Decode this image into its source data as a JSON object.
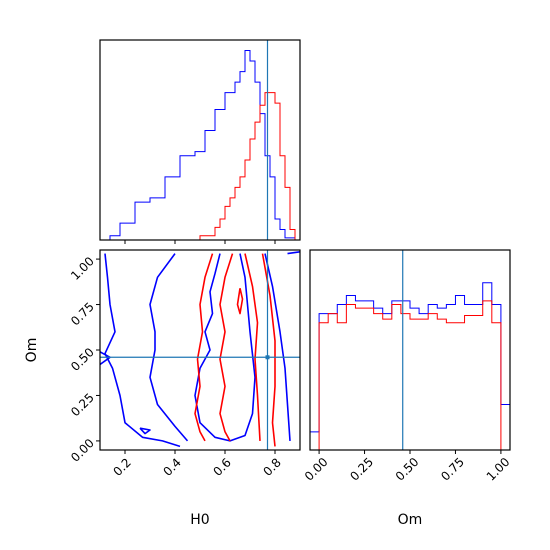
{
  "chart_data": [
    {
      "type": "histogram",
      "panel": "H0 marginal",
      "xlim": [
        0.1,
        0.9
      ],
      "truth": 0.77,
      "bins": [
        0.1,
        0.12,
        0.14,
        0.16,
        0.18,
        0.2,
        0.22,
        0.24,
        0.26,
        0.28,
        0.3,
        0.32,
        0.34,
        0.36,
        0.38,
        0.4,
        0.42,
        0.44,
        0.46,
        0.48,
        0.5,
        0.52,
        0.54,
        0.56,
        0.58,
        0.6,
        0.62,
        0.64,
        0.66,
        0.68,
        0.7,
        0.72,
        0.74,
        0.76,
        0.78,
        0.8,
        0.82,
        0.84,
        0.86,
        0.88,
        0.9
      ],
      "series": [
        {
          "color": "#0000ff",
          "values": [
            0,
            0,
            2,
            2,
            8,
            8,
            8,
            18,
            18,
            18,
            20,
            20,
            20,
            30,
            30,
            30,
            40,
            40,
            40,
            42,
            42,
            52,
            52,
            62,
            62,
            70,
            70,
            75,
            80,
            90,
            85,
            75,
            60,
            40,
            30,
            10,
            5,
            1,
            1,
            0
          ]
        },
        {
          "color": "#ff0000",
          "values": [
            0,
            0,
            0,
            0,
            0,
            0,
            0,
            0,
            0,
            0,
            0,
            0,
            0,
            0,
            0,
            0,
            0,
            0,
            0,
            0,
            2,
            2,
            2,
            6,
            10,
            16,
            20,
            25,
            30,
            38,
            48,
            56,
            64,
            70,
            70,
            65,
            40,
            25,
            5,
            0
          ]
        }
      ]
    },
    {
      "type": "contour",
      "panel": "H0 vs Om joint",
      "xlabel": "H0",
      "ylabel": "Om",
      "xlim": [
        0.1,
        0.9
      ],
      "ylim": [
        -0.05,
        1.05
      ],
      "xticks": [
        "0.2",
        "0.4",
        "0.6",
        "0.8"
      ],
      "yticks": [
        "0.00",
        "0.25",
        "0.50",
        "0.75",
        "1.00"
      ],
      "truth": {
        "x": 0.77,
        "y": 0.46
      },
      "series": [
        {
          "color": "#0000ff",
          "contours": [
            [
              [
                0.12,
                1.03
              ],
              [
                0.13,
                0.9
              ],
              [
                0.14,
                0.75
              ],
              [
                0.16,
                0.6
              ],
              [
                0.12,
                0.48
              ],
              [
                0.15,
                0.4
              ],
              [
                0.18,
                0.25
              ],
              [
                0.2,
                0.1
              ],
              [
                0.27,
                0.02
              ],
              [
                0.35,
                0.0
              ],
              [
                0.42,
                -0.03
              ]
            ],
            [
              [
                0.4,
                1.03
              ],
              [
                0.33,
                0.9
              ],
              [
                0.3,
                0.75
              ],
              [
                0.32,
                0.6
              ],
              [
                0.32,
                0.5
              ],
              [
                0.3,
                0.35
              ],
              [
                0.33,
                0.2
              ],
              [
                0.4,
                0.08
              ],
              [
                0.45,
                0.0
              ]
            ],
            [
              [
                0.58,
                1.03
              ],
              [
                0.56,
                0.92
              ],
              [
                0.54,
                0.82
              ],
              [
                0.55,
                0.7
              ],
              [
                0.52,
                0.6
              ],
              [
                0.54,
                0.5
              ],
              [
                0.5,
                0.4
              ],
              [
                0.48,
                0.25
              ],
              [
                0.5,
                0.1
              ],
              [
                0.56,
                0.02
              ],
              [
                0.62,
                0.0
              ],
              [
                0.68,
                0.03
              ],
              [
                0.71,
                0.15
              ],
              [
                0.72,
                0.35
              ],
              [
                0.7,
                0.6
              ],
              [
                0.68,
                0.9
              ],
              [
                0.66,
                1.03
              ]
            ],
            [
              [
                0.76,
                1.03
              ],
              [
                0.79,
                0.85
              ],
              [
                0.82,
                0.6
              ],
              [
                0.84,
                0.4
              ],
              [
                0.85,
                0.2
              ],
              [
                0.86,
                0.0
              ]
            ],
            [
              [
                0.85,
                1.03
              ],
              [
                0.9,
                1.04
              ]
            ],
            [
              [
                0.26,
                0.07
              ],
              [
                0.3,
                0.06
              ],
              [
                0.28,
                0.04
              ],
              [
                0.26,
                0.07
              ]
            ],
            [
              [
                0.1,
                0.49
              ],
              [
                0.14,
                0.46
              ],
              [
                0.1,
                0.42
              ]
            ]
          ]
        },
        {
          "color": "#ff0000",
          "contours": [
            [
              [
                0.55,
                1.03
              ],
              [
                0.52,
                0.9
              ],
              [
                0.5,
                0.75
              ],
              [
                0.51,
                0.6
              ],
              [
                0.49,
                0.45
              ],
              [
                0.5,
                0.3
              ],
              [
                0.48,
                0.15
              ],
              [
                0.5,
                0.05
              ],
              [
                0.52,
                0.0
              ]
            ],
            [
              [
                0.63,
                1.03
              ],
              [
                0.6,
                0.9
              ],
              [
                0.58,
                0.75
              ],
              [
                0.6,
                0.6
              ],
              [
                0.58,
                0.45
              ],
              [
                0.6,
                0.3
              ],
              [
                0.58,
                0.15
              ],
              [
                0.6,
                0.05
              ],
              [
                0.62,
                0.0
              ]
            ],
            [
              [
                0.68,
                1.03
              ],
              [
                0.71,
                0.85
              ],
              [
                0.73,
                0.65
              ],
              [
                0.72,
                0.45
              ],
              [
                0.73,
                0.25
              ],
              [
                0.74,
                0.0
              ]
            ],
            [
              [
                0.75,
                1.03
              ],
              [
                0.78,
                0.8
              ],
              [
                0.8,
                0.55
              ],
              [
                0.8,
                0.3
              ],
              [
                0.79,
                0.1
              ],
              [
                0.8,
                -0.03
              ]
            ],
            [
              [
                0.66,
                0.84
              ],
              [
                0.65,
                0.75
              ],
              [
                0.66,
                0.7
              ],
              [
                0.67,
                0.78
              ],
              [
                0.66,
                0.84
              ]
            ]
          ]
        }
      ]
    },
    {
      "type": "histogram",
      "panel": "Om marginal",
      "xlabel": "Om",
      "xlim": [
        -0.05,
        1.05
      ],
      "xticks": [
        "0.00",
        "0.25",
        "0.50",
        "0.75",
        "1.00"
      ],
      "truth": 0.46,
      "bins": [
        -0.05,
        0.0,
        0.05,
        0.1,
        0.15,
        0.2,
        0.25,
        0.3,
        0.35,
        0.4,
        0.45,
        0.5,
        0.55,
        0.6,
        0.65,
        0.7,
        0.75,
        0.8,
        0.85,
        0.9,
        0.95,
        1.0,
        1.05
      ],
      "series": [
        {
          "color": "#0000ff",
          "values": [
            10,
            75,
            75,
            80,
            85,
            82,
            82,
            78,
            75,
            82,
            82,
            78,
            75,
            80,
            78,
            80,
            85,
            80,
            80,
            92,
            80,
            25
          ]
        },
        {
          "color": "#ff0000",
          "values": [
            0,
            70,
            75,
            70,
            80,
            78,
            78,
            75,
            72,
            80,
            75,
            72,
            72,
            75,
            72,
            70,
            70,
            74,
            74,
            82,
            70,
            0
          ]
        }
      ]
    }
  ]
}
